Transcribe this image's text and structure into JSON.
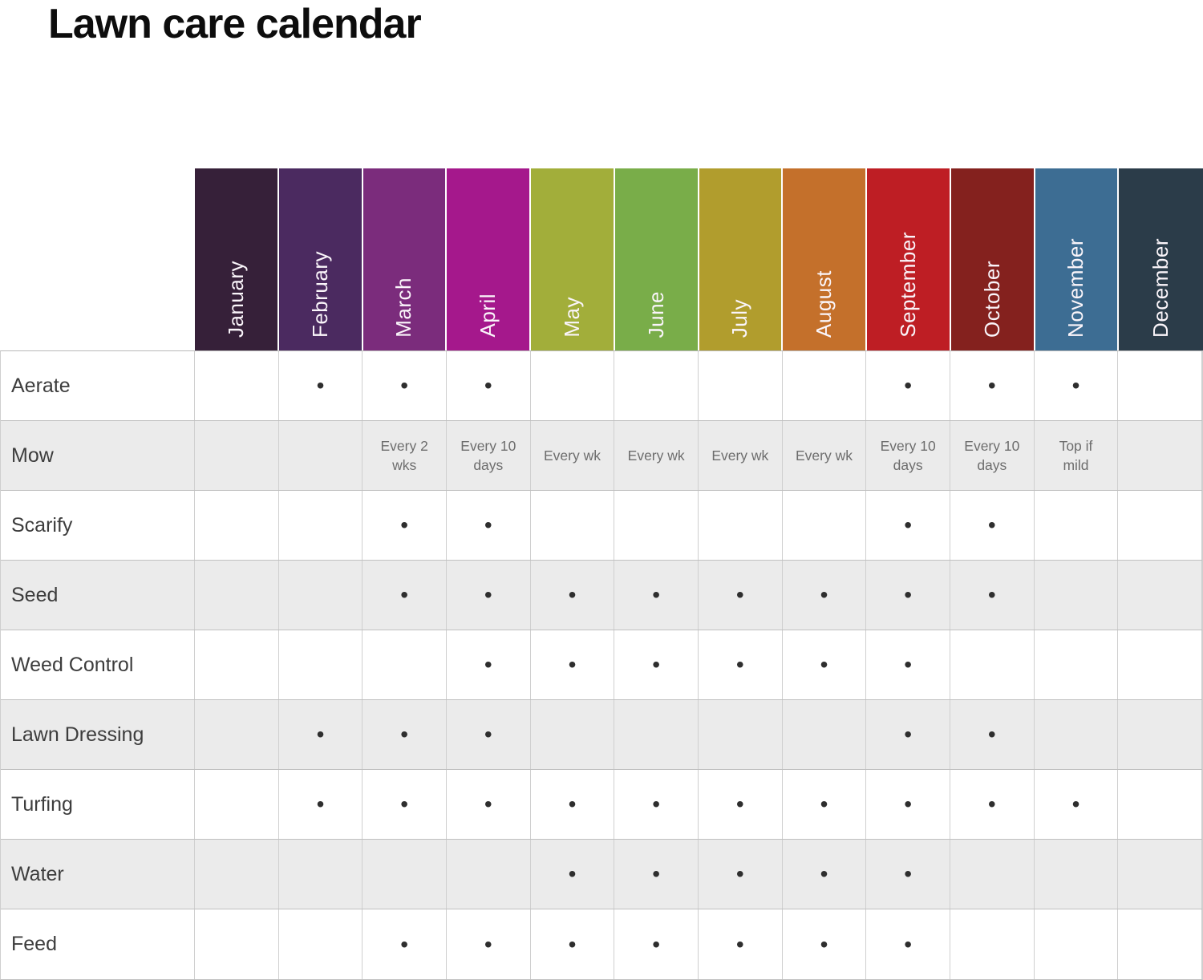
{
  "title": "Lawn care calendar",
  "palette": {
    "shaded_row": "#ebebeb",
    "grid_line": "#cfcfcf",
    "note_text": "#6d6d6d",
    "row_label_text": "#3d3d3d",
    "dot": "#2e2e2e",
    "title_text": "#0d0d0d",
    "month_label_text": "#faf5fa"
  },
  "chart_data": {
    "type": "table",
    "title": "Lawn care calendar",
    "columns": [
      {
        "name": "January",
        "color": "#362039"
      },
      {
        "name": "February",
        "color": "#4b2a60"
      },
      {
        "name": "March",
        "color": "#7b2c7c"
      },
      {
        "name": "April",
        "color": "#a5188c"
      },
      {
        "name": "May",
        "color": "#a2ae3a"
      },
      {
        "name": "June",
        "color": "#79ad49"
      },
      {
        "name": "July",
        "color": "#b19d2d"
      },
      {
        "name": "August",
        "color": "#c4702b"
      },
      {
        "name": "September",
        "color": "#be1e24"
      },
      {
        "name": "October",
        "color": "#84211e"
      },
      {
        "name": "November",
        "color": "#3d6d93"
      },
      {
        "name": "December",
        "color": "#2b3c49"
      }
    ],
    "rows": [
      {
        "label": "Aerate",
        "cells": [
          "",
          "•",
          "•",
          "•",
          "",
          "",
          "",
          "",
          "•",
          "•",
          "•",
          ""
        ]
      },
      {
        "label": "Mow",
        "cells": [
          "",
          "",
          "Every 2\nwks",
          "Every 10\ndays",
          "Every wk",
          "Every wk",
          "Every wk",
          "Every wk",
          "Every 10\ndays",
          "Every 10\ndays",
          "Top if\nmild",
          ""
        ]
      },
      {
        "label": "Scarify",
        "cells": [
          "",
          "",
          "•",
          "•",
          "",
          "",
          "",
          "",
          "•",
          "•",
          "",
          ""
        ]
      },
      {
        "label": "Seed",
        "cells": [
          "",
          "",
          "•",
          "•",
          "•",
          "•",
          "•",
          "•",
          "•",
          "•",
          "",
          ""
        ]
      },
      {
        "label": "Weed Control",
        "cells": [
          "",
          "",
          "",
          "•",
          "•",
          "•",
          "•",
          "•",
          "•",
          "",
          "",
          ""
        ]
      },
      {
        "label": "Lawn Dressing",
        "cells": [
          "",
          "•",
          "•",
          "•",
          "",
          "",
          "",
          "",
          "•",
          "•",
          "",
          ""
        ]
      },
      {
        "label": "Turfing",
        "cells": [
          "",
          "•",
          "•",
          "•",
          "•",
          "•",
          "•",
          "•",
          "•",
          "•",
          "•",
          ""
        ]
      },
      {
        "label": "Water",
        "cells": [
          "",
          "",
          "",
          "",
          "•",
          "•",
          "•",
          "•",
          "•",
          "",
          "",
          ""
        ]
      },
      {
        "label": "Feed",
        "cells": [
          "",
          "",
          "•",
          "•",
          "•",
          "•",
          "•",
          "•",
          "•",
          "",
          "",
          ""
        ]
      }
    ]
  }
}
